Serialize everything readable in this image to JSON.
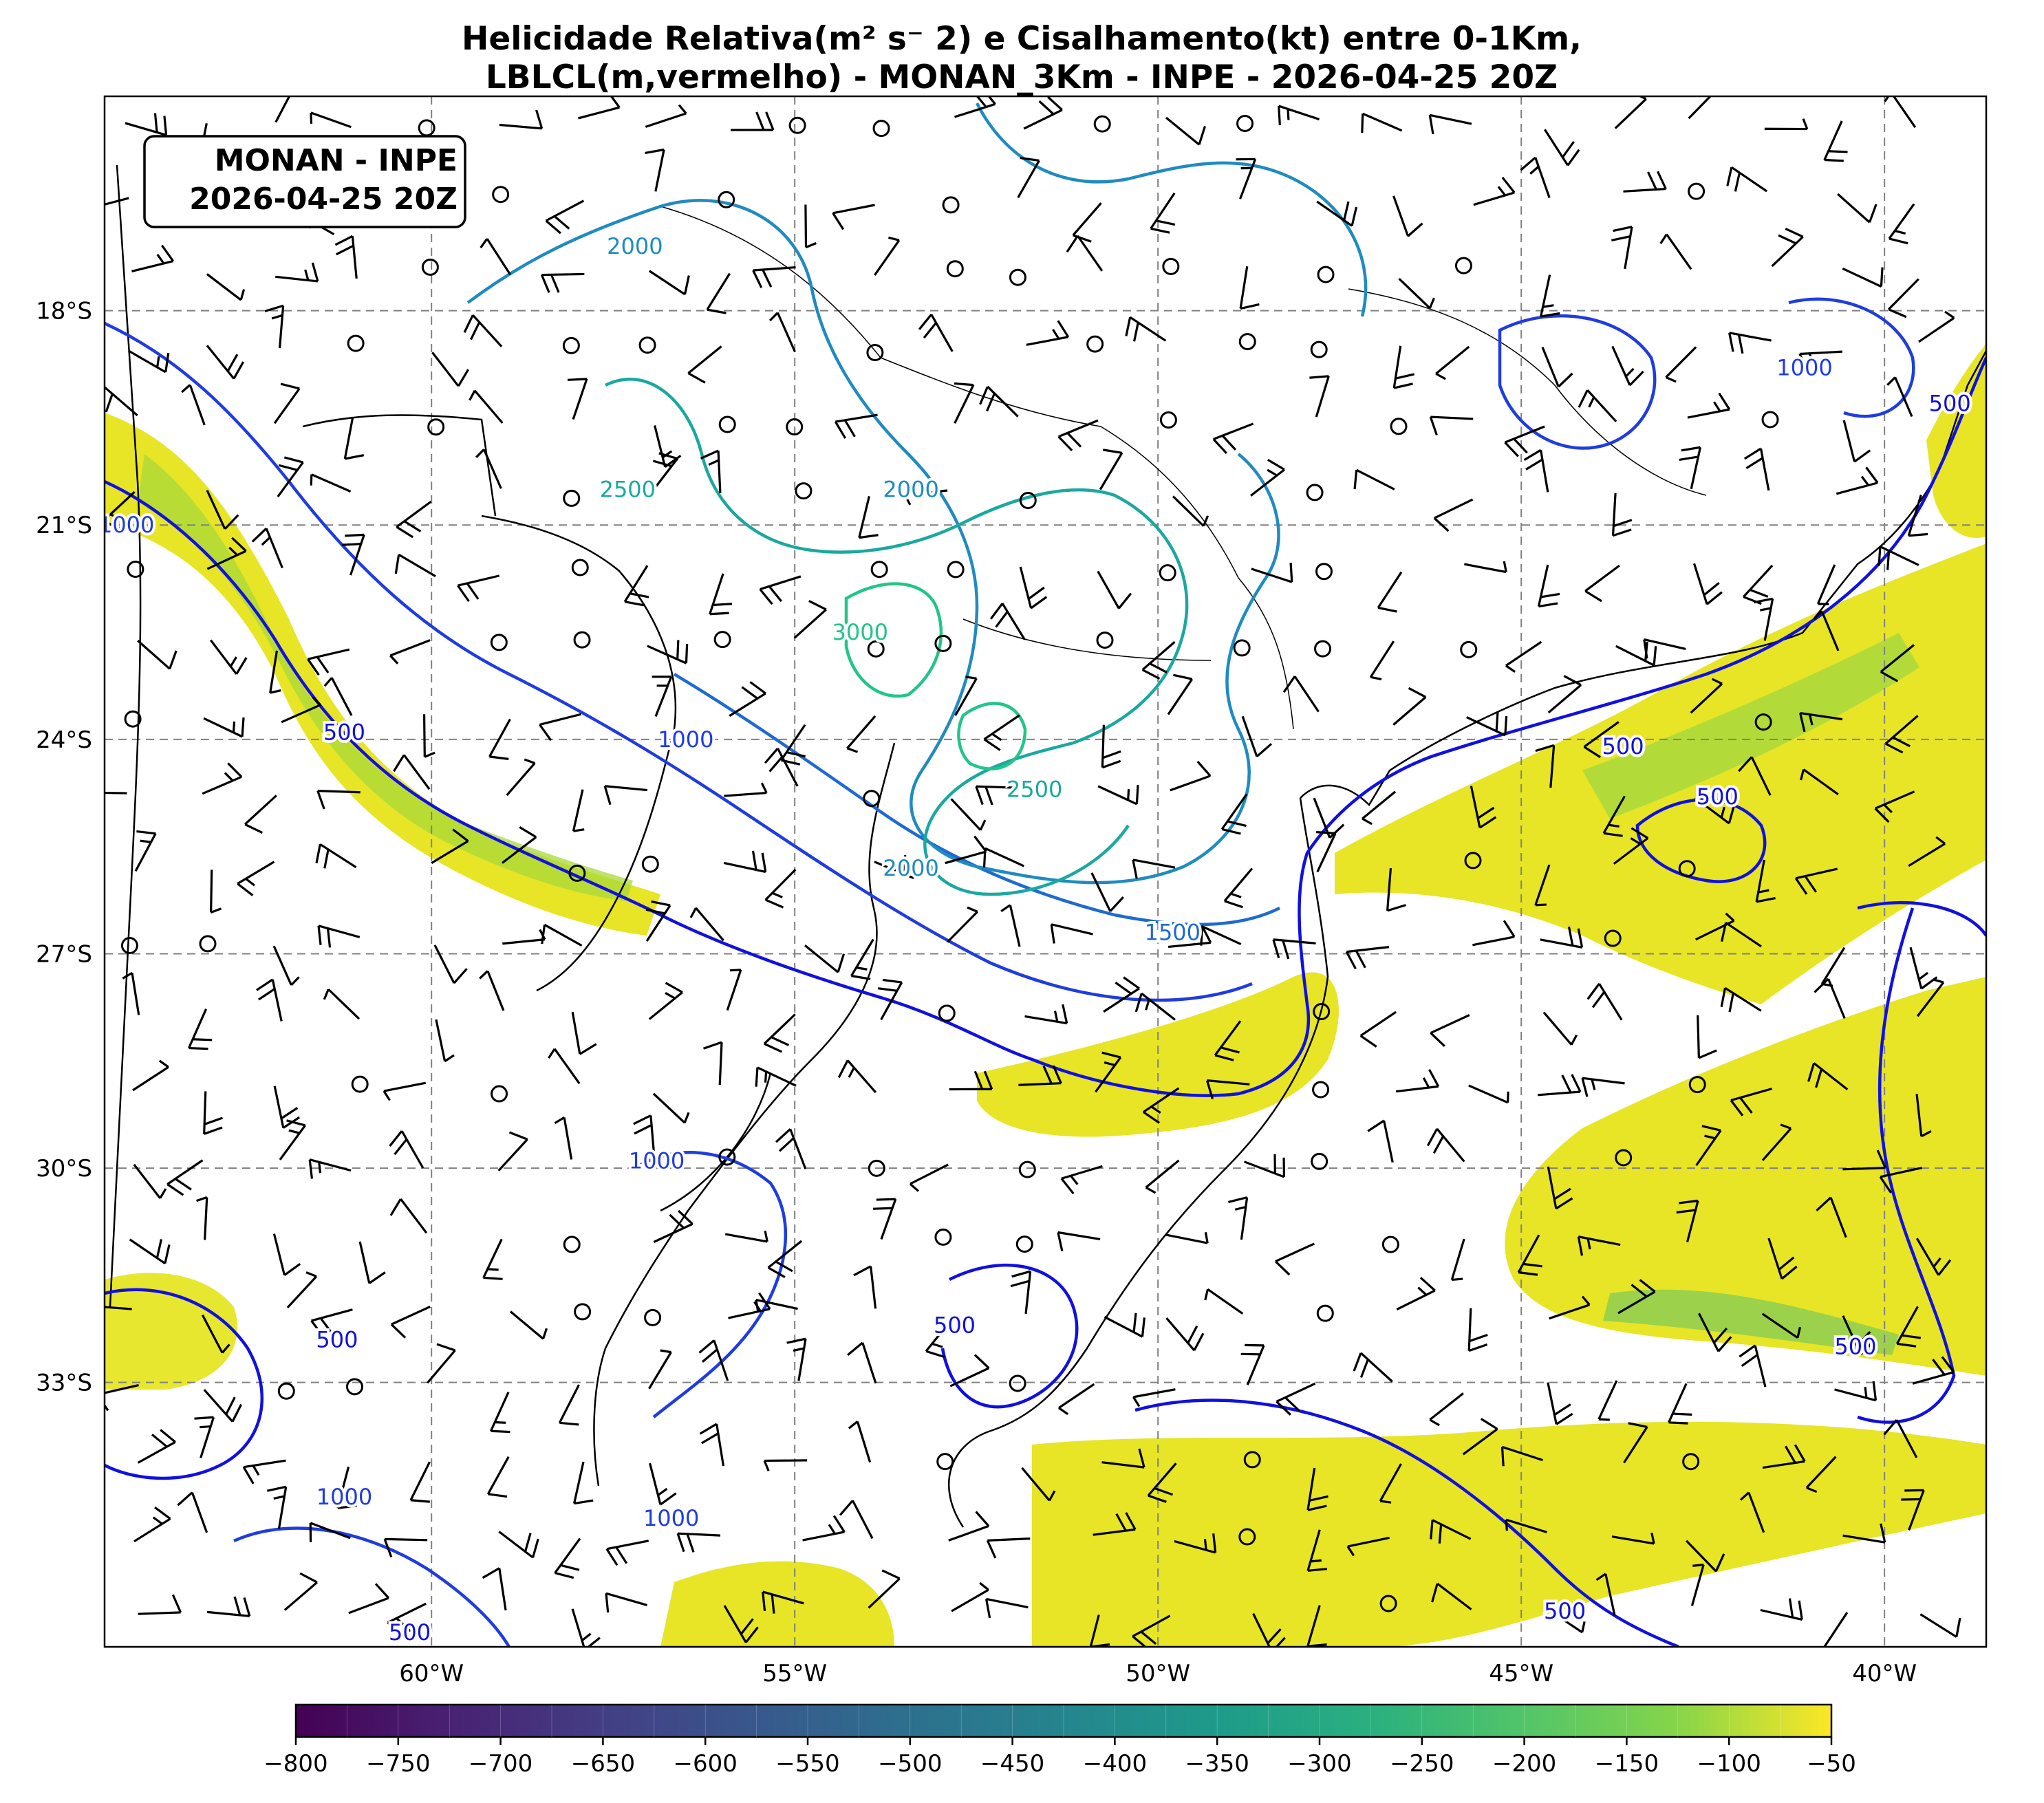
{
  "title": {
    "line1": "Helicidade Relativa(m² s⁻ 2) e Cisalhamento(kt) entre 0-1Km,",
    "line2": "LBLCL(m,vermelho) - MONAN_3Km - INPE - 2026-04-25 20Z"
  },
  "stamp": {
    "line1": "MONAN - INPE",
    "line2": "2026-04-25 20Z"
  },
  "map": {
    "lon_range": [
      -64.5,
      -38.6
    ],
    "lat_range": [
      -36.7,
      -15.0
    ],
    "lon_ticks": [
      {
        "value": -60,
        "label": "60°W"
      },
      {
        "value": -55,
        "label": "55°W"
      },
      {
        "value": -50,
        "label": "50°W"
      },
      {
        "value": -45,
        "label": "45°W"
      },
      {
        "value": -40,
        "label": "40°W"
      }
    ],
    "lat_ticks": [
      {
        "value": -18,
        "label": "18°S"
      },
      {
        "value": -21,
        "label": "21°S"
      },
      {
        "value": -24,
        "label": "24°S"
      },
      {
        "value": -27,
        "label": "27°S"
      },
      {
        "value": -30,
        "label": "30°S"
      },
      {
        "value": -33,
        "label": "33°S"
      }
    ],
    "grid": true,
    "colors": {
      "helicity_low": "#e6e41a",
      "helicity_mid": "#8fd448",
      "helicity_strong": "#3cbb75",
      "lcl_500": "#1010e0",
      "lcl_1000": "#1f3ce0",
      "lcl_1500": "#1f6ad0",
      "lcl_2000": "#1f8bc0",
      "lcl_2500": "#1aa89f",
      "lcl_3000": "#22c588",
      "barb": "#000000",
      "coast": "#000000"
    }
  },
  "contour_labels": [
    {
      "text": "500",
      "lon": -61.2,
      "lat": -23.9,
      "level": "lcl_500"
    },
    {
      "text": "1000",
      "lon": -56.5,
      "lat": -24.0,
      "level": "lcl_1000"
    },
    {
      "text": "2000",
      "lon": -57.2,
      "lat": -17.1,
      "level": "lcl_2000"
    },
    {
      "text": "2000",
      "lon": -53.4,
      "lat": -20.5,
      "level": "lcl_2000"
    },
    {
      "text": "2500",
      "lon": -57.3,
      "lat": -20.5,
      "level": "lcl_2500"
    },
    {
      "text": "3000",
      "lon": -54.1,
      "lat": -22.5,
      "level": "lcl_3000"
    },
    {
      "text": "2500",
      "lon": -51.7,
      "lat": -24.7,
      "level": "lcl_2500"
    },
    {
      "text": "2000",
      "lon": -53.4,
      "lat": -25.8,
      "level": "lcl_2000"
    },
    {
      "text": "1500",
      "lon": -49.8,
      "lat": -26.7,
      "level": "lcl_1500"
    },
    {
      "text": "500",
      "lon": -43.6,
      "lat": -24.1,
      "level": "lcl_500"
    },
    {
      "text": "500",
      "lon": -42.3,
      "lat": -24.8,
      "level": "lcl_500"
    },
    {
      "text": "1000",
      "lon": -41.1,
      "lat": -18.8,
      "level": "lcl_1000"
    },
    {
      "text": "500",
      "lon": -39.1,
      "lat": -19.3,
      "level": "lcl_500"
    },
    {
      "text": "1000",
      "lon": -64.2,
      "lat": -21.0,
      "level": "lcl_1000"
    },
    {
      "text": "1000",
      "lon": -56.9,
      "lat": -29.9,
      "level": "lcl_1000"
    },
    {
      "text": "500",
      "lon": -52.8,
      "lat": -32.2,
      "level": "lcl_500"
    },
    {
      "text": "500",
      "lon": -61.3,
      "lat": -32.4,
      "level": "lcl_500"
    },
    {
      "text": "1000",
      "lon": -61.2,
      "lat": -34.6,
      "level": "lcl_1000"
    },
    {
      "text": "1000",
      "lon": -56.7,
      "lat": -34.9,
      "level": "lcl_1000"
    },
    {
      "text": "500",
      "lon": -40.4,
      "lat": -32.5,
      "level": "lcl_500"
    },
    {
      "text": "500",
      "lon": -44.4,
      "lat": -36.2,
      "level": "lcl_500"
    },
    {
      "text": "500",
      "lon": -60.3,
      "lat": -36.5,
      "level": "lcl_500"
    }
  ],
  "colorbar": {
    "min": -800,
    "max": -50,
    "step": 25,
    "ticks": [
      "−800",
      "−750",
      "−700",
      "−650",
      "−600",
      "−550",
      "−500",
      "−450",
      "−400",
      "−350",
      "−300",
      "−250",
      "−200",
      "−150",
      "−100",
      "−50"
    ]
  }
}
